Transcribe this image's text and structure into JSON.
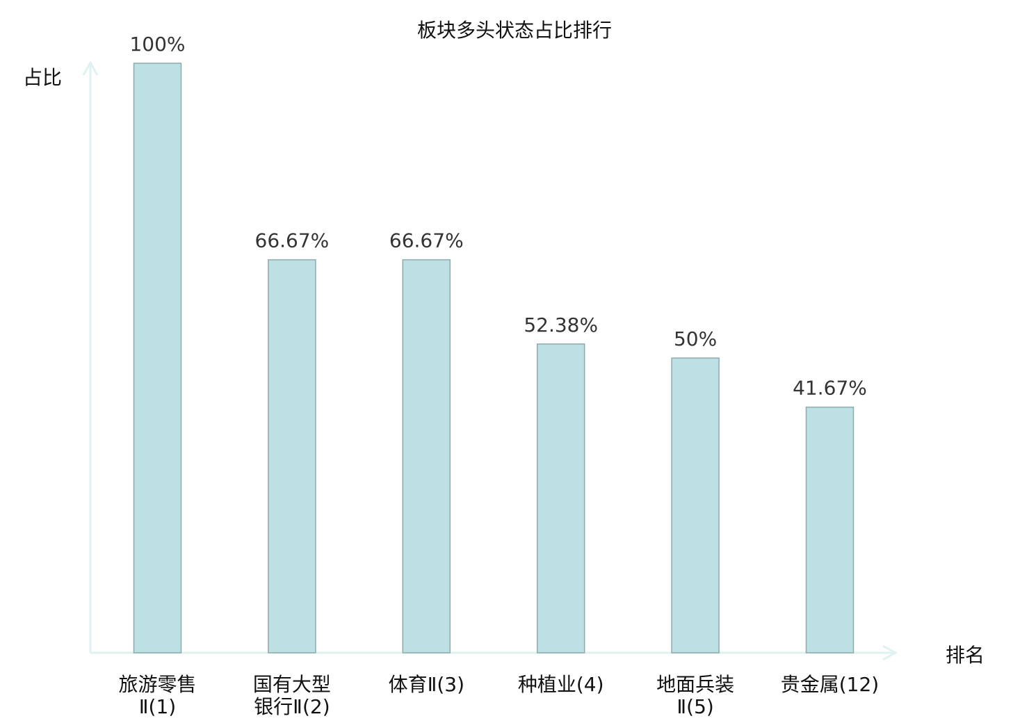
{
  "chart_data": {
    "type": "bar",
    "title": "板块多头状态占比排行",
    "xlabel": "排名",
    "ylabel": "占比",
    "ylim": [
      0,
      100
    ],
    "grid": false,
    "categories": [
      {
        "lines": [
          "旅游零售",
          "Ⅱ(1)"
        ],
        "highlight": false
      },
      {
        "lines": [
          "国有大型",
          "银行Ⅱ(2)"
        ],
        "highlight": false
      },
      {
        "lines": [
          "体育Ⅱ(3)"
        ],
        "highlight": false
      },
      {
        "lines": [
          "种植业(4)"
        ],
        "highlight": false
      },
      {
        "lines": [
          "地面兵装",
          "Ⅱ(5)"
        ],
        "highlight": false
      },
      {
        "lines": [
          "贵金属(12)"
        ],
        "highlight": true
      }
    ],
    "values": [
      100,
      66.67,
      66.67,
      52.38,
      50,
      41.67
    ],
    "value_labels": [
      "100%",
      "66.67%",
      "66.67%",
      "52.38%",
      "50%",
      "41.67%"
    ],
    "colors": {
      "bar": "#bce0e3",
      "bar_edge": "#8eaaab",
      "axis": "#dff2f0",
      "highlight": "#e8191c",
      "text": "#111111",
      "value_text": "#333333"
    }
  }
}
